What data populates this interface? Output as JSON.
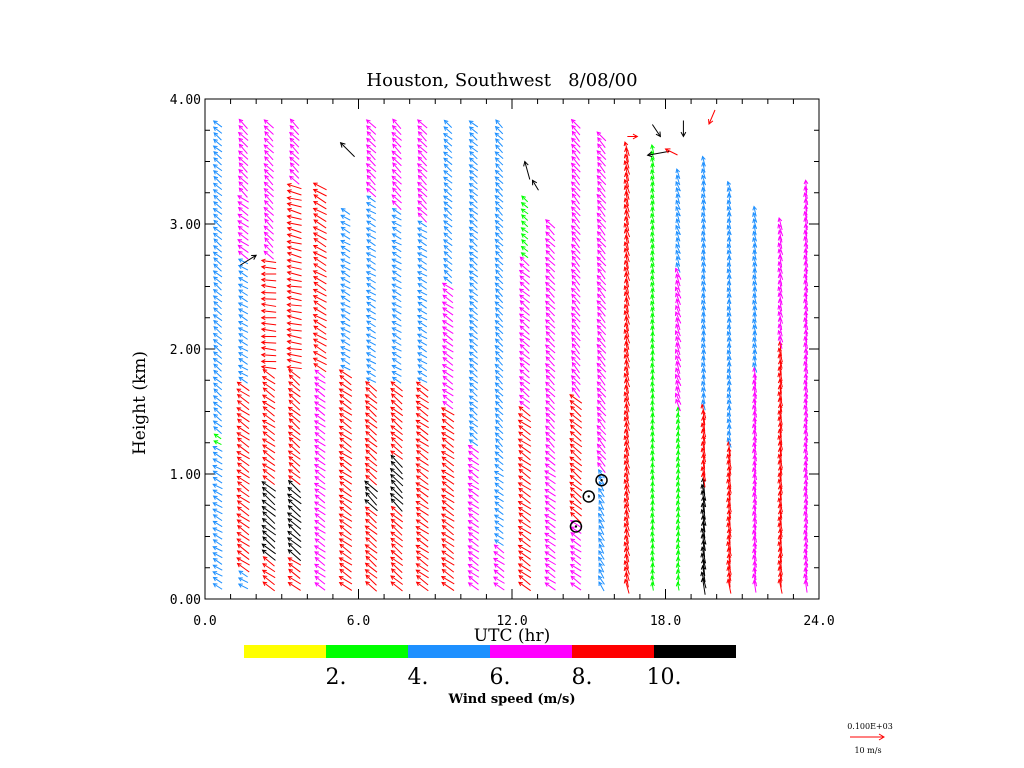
{
  "chart_data": {
    "type": "wind-profile",
    "title": "Houston, Southwest   8/08/00",
    "xlabel": "UTC (hr)",
    "ylabel": "Height (km)",
    "xlim": [
      0,
      24
    ],
    "ylim": [
      0,
      4
    ],
    "x_ticks": [
      "0.0",
      "6.0",
      "12.0",
      "18.0",
      "24.0"
    ],
    "y_ticks": [
      "0.00",
      "1.00",
      "2.00",
      "3.00",
      "4.00"
    ],
    "colorbar": {
      "label": "Wind speed (m/s)",
      "bins": [
        {
          "from": 0,
          "to": 2,
          "color": "#ffff00"
        },
        {
          "from": 2,
          "to": 4,
          "color": "#00ff00"
        },
        {
          "from": 4,
          "to": 6,
          "color": "#1e90ff"
        },
        {
          "from": 6,
          "to": 8,
          "color": "#ff00ff"
        },
        {
          "from": 8,
          "to": 10,
          "color": "#ff0000"
        },
        {
          "from": 10,
          "to": 12,
          "color": "#000000"
        }
      ],
      "tick_labels": [
        "2.",
        "4.",
        "6.",
        "8.",
        "10."
      ]
    },
    "reference_vector": {
      "scale_label": "0.100E+03",
      "label": "10 m/s",
      "color": "#ff0000"
    },
    "profiles": [
      {
        "time": 0.5,
        "top": 3.8,
        "layers": [
          {
            "to": 1.2,
            "speed": 5,
            "dir": 60
          },
          {
            "to": 1.3,
            "speed": 3,
            "dir": 60
          },
          {
            "to": 3.8,
            "speed": 5,
            "dir": 50
          }
        ]
      },
      {
        "time": 1.5,
        "top": 3.8,
        "layers": [
          {
            "to": 0.2,
            "speed": 5,
            "dir": 60
          },
          {
            "to": 1.7,
            "speed": 9,
            "dir": 55
          },
          {
            "to": 2.7,
            "speed": 5,
            "dir": 60
          },
          {
            "to": 3.2,
            "speed": 7,
            "dir": 55
          },
          {
            "to": 3.8,
            "speed": 7,
            "dir": 45
          }
        ]
      },
      {
        "time": 2.5,
        "top": 3.8,
        "layers": [
          {
            "to": 0.3,
            "speed": 9,
            "dir": 55
          },
          {
            "to": 0.9,
            "speed": 11,
            "dir": 50
          },
          {
            "to": 1.8,
            "speed": 9,
            "dir": 55
          },
          {
            "to": 2.7,
            "speed": 9,
            "dir": 85
          },
          {
            "to": 3.8,
            "speed": 7,
            "dir": 45
          }
        ]
      },
      {
        "time": 3.5,
        "top": 3.8,
        "layers": [
          {
            "to": 0.3,
            "speed": 9,
            "dir": 55
          },
          {
            "to": 0.9,
            "speed": 11,
            "dir": 50
          },
          {
            "to": 1.8,
            "speed": 9,
            "dir": 50
          },
          {
            "to": 2.6,
            "speed": 9,
            "dir": 80
          },
          {
            "to": 3.3,
            "speed": 9,
            "dir": 75
          },
          {
            "to": 3.8,
            "speed": 7,
            "dir": 45
          }
        ]
      },
      {
        "time": 4.5,
        "top": 3.3,
        "layers": [
          {
            "to": 1.8,
            "speed": 7,
            "dir": 55
          },
          {
            "to": 3.3,
            "speed": 9,
            "dir": 60
          }
        ]
      },
      {
        "time": 5.5,
        "top": 3.1,
        "layers": [
          {
            "to": 1.8,
            "speed": 9,
            "dir": 55
          },
          {
            "to": 3.1,
            "speed": 5,
            "dir": 60
          }
        ]
      },
      {
        "time": 6.5,
        "top": 3.8,
        "layers": [
          {
            "to": 0.7,
            "speed": 9,
            "dir": 50
          },
          {
            "to": 0.9,
            "speed": 11,
            "dir": 45
          },
          {
            "to": 1.7,
            "speed": 9,
            "dir": 50
          },
          {
            "to": 3.2,
            "speed": 5,
            "dir": 60
          },
          {
            "to": 3.8,
            "speed": 7,
            "dir": 45
          }
        ]
      },
      {
        "time": 7.5,
        "top": 3.8,
        "layers": [
          {
            "to": 0.7,
            "speed": 9,
            "dir": 50
          },
          {
            "to": 1.1,
            "speed": 11,
            "dir": 45
          },
          {
            "to": 1.7,
            "speed": 9,
            "dir": 50
          },
          {
            "to": 3.1,
            "speed": 5,
            "dir": 60
          },
          {
            "to": 3.8,
            "speed": 7,
            "dir": 45
          }
        ]
      },
      {
        "time": 8.5,
        "top": 3.8,
        "layers": [
          {
            "to": 1.7,
            "speed": 9,
            "dir": 55
          },
          {
            "to": 3.0,
            "speed": 5,
            "dir": 60
          },
          {
            "to": 3.8,
            "speed": 7,
            "dir": 45
          }
        ]
      },
      {
        "time": 9.5,
        "top": 3.8,
        "layers": [
          {
            "to": 1.5,
            "speed": 9,
            "dir": 55
          },
          {
            "to": 2.5,
            "speed": 7,
            "dir": 55
          },
          {
            "to": 3.8,
            "speed": 5,
            "dir": 50
          }
        ]
      },
      {
        "time": 10.5,
        "top": 3.8,
        "layers": [
          {
            "to": 1.2,
            "speed": 7,
            "dir": 55
          },
          {
            "to": 3.8,
            "speed": 5,
            "dir": 50
          }
        ]
      },
      {
        "time": 11.5,
        "top": 3.8,
        "layers": [
          {
            "to": 0.4,
            "speed": 7,
            "dir": 55
          },
          {
            "to": 1.1,
            "speed": 5,
            "dir": 55
          },
          {
            "to": 3.8,
            "speed": 5,
            "dir": 45
          }
        ]
      },
      {
        "time": 12.5,
        "top": 3.2,
        "layers": [
          {
            "to": 0.4,
            "speed": 9,
            "dir": 55
          },
          {
            "to": 1.5,
            "speed": 9,
            "dir": 55
          },
          {
            "to": 2.7,
            "speed": 7,
            "dir": 50
          },
          {
            "to": 3.2,
            "speed": 3,
            "dir": 50
          }
        ]
      },
      {
        "time": 13.5,
        "top": 3.0,
        "layers": [
          {
            "to": 1.1,
            "speed": 7,
            "dir": 55
          },
          {
            "to": 3.0,
            "speed": 7,
            "dir": 45
          }
        ]
      },
      {
        "time": 14.5,
        "top": 3.8,
        "layers": [
          {
            "to": 0.6,
            "speed": 7,
            "dir": 55
          },
          {
            "to": 1.6,
            "speed": 9,
            "dir": 50
          },
          {
            "to": 3.8,
            "speed": 7,
            "dir": 40
          }
        ]
      },
      {
        "time": 15.5,
        "top": 3.7,
        "layers": [
          {
            "to": 1.0,
            "speed": 5,
            "dir": 30
          },
          {
            "to": 3.7,
            "speed": 7,
            "dir": 40
          }
        ]
      },
      {
        "time": 16.5,
        "top": 3.6,
        "layers": [
          {
            "to": 3.6,
            "speed": 9,
            "dir": 15
          }
        ]
      },
      {
        "time": 17.5,
        "top": 3.6,
        "layers": [
          {
            "to": 2.2,
            "speed": 3,
            "dir": 10
          },
          {
            "to": 3.6,
            "speed": 3,
            "dir": 15
          }
        ]
      },
      {
        "time": 18.5,
        "top": 3.4,
        "layers": [
          {
            "to": 1.5,
            "speed": 3,
            "dir": 10
          },
          {
            "to": 2.6,
            "speed": 7,
            "dir": 20
          },
          {
            "to": 3.4,
            "speed": 5,
            "dir": 20
          }
        ]
      },
      {
        "time": 19.5,
        "top": 3.5,
        "layers": [
          {
            "to": 0.9,
            "speed": 11,
            "dir": 10
          },
          {
            "to": 1.5,
            "speed": 9,
            "dir": 10
          },
          {
            "to": 3.5,
            "speed": 5,
            "dir": 15
          }
        ]
      },
      {
        "time": 20.5,
        "top": 3.3,
        "layers": [
          {
            "to": 1.2,
            "speed": 9,
            "dir": 10
          },
          {
            "to": 3.3,
            "speed": 5,
            "dir": 15
          }
        ]
      },
      {
        "time": 21.5,
        "top": 3.1,
        "layers": [
          {
            "to": 1.8,
            "speed": 7,
            "dir": 10
          },
          {
            "to": 3.1,
            "speed": 5,
            "dir": 15
          }
        ]
      },
      {
        "time": 22.5,
        "top": 3.0,
        "layers": [
          {
            "to": 2.0,
            "speed": 9,
            "dir": 10
          },
          {
            "to": 3.0,
            "speed": 7,
            "dir": 15
          }
        ]
      },
      {
        "time": 23.5,
        "top": 3.3,
        "layers": [
          {
            "to": 3.3,
            "speed": 7,
            "dir": 10
          }
        ]
      }
    ],
    "calm_markers": [
      {
        "time": 14.5,
        "height": 0.58
      },
      {
        "time": 15.0,
        "height": 0.82
      },
      {
        "time": 15.5,
        "height": 0.95
      }
    ],
    "highlight_vectors": [
      {
        "time": 2.0,
        "height": 2.75,
        "dx": -16,
        "dy": 10,
        "color": "#000000"
      },
      {
        "time": 5.3,
        "height": 3.65,
        "dx": 14,
        "dy": 14,
        "color": "#000000"
      },
      {
        "time": 12.5,
        "height": 3.5,
        "dx": 5,
        "dy": 18,
        "color": "#000000"
      },
      {
        "time": 12.8,
        "height": 3.35,
        "dx": 6,
        "dy": 10,
        "color": "#000000"
      },
      {
        "time": 17.3,
        "height": 3.55,
        "dx": 22,
        "dy": -4,
        "color": "#000000"
      },
      {
        "time": 17.8,
        "height": 3.7,
        "dx": -8,
        "dy": -12,
        "color": "#000000"
      },
      {
        "time": 18.7,
        "height": 3.7,
        "dx": 0,
        "dy": -16,
        "color": "#000000"
      },
      {
        "time": 19.7,
        "height": 3.8,
        "dx": 6,
        "dy": -14,
        "color": "#ff0000"
      },
      {
        "time": 16.9,
        "height": 3.7,
        "dx": -10,
        "dy": 0,
        "color": "#ff0000"
      },
      {
        "time": 18.0,
        "height": 3.6,
        "dx": 12,
        "dy": 6,
        "color": "#ff0000"
      }
    ]
  }
}
